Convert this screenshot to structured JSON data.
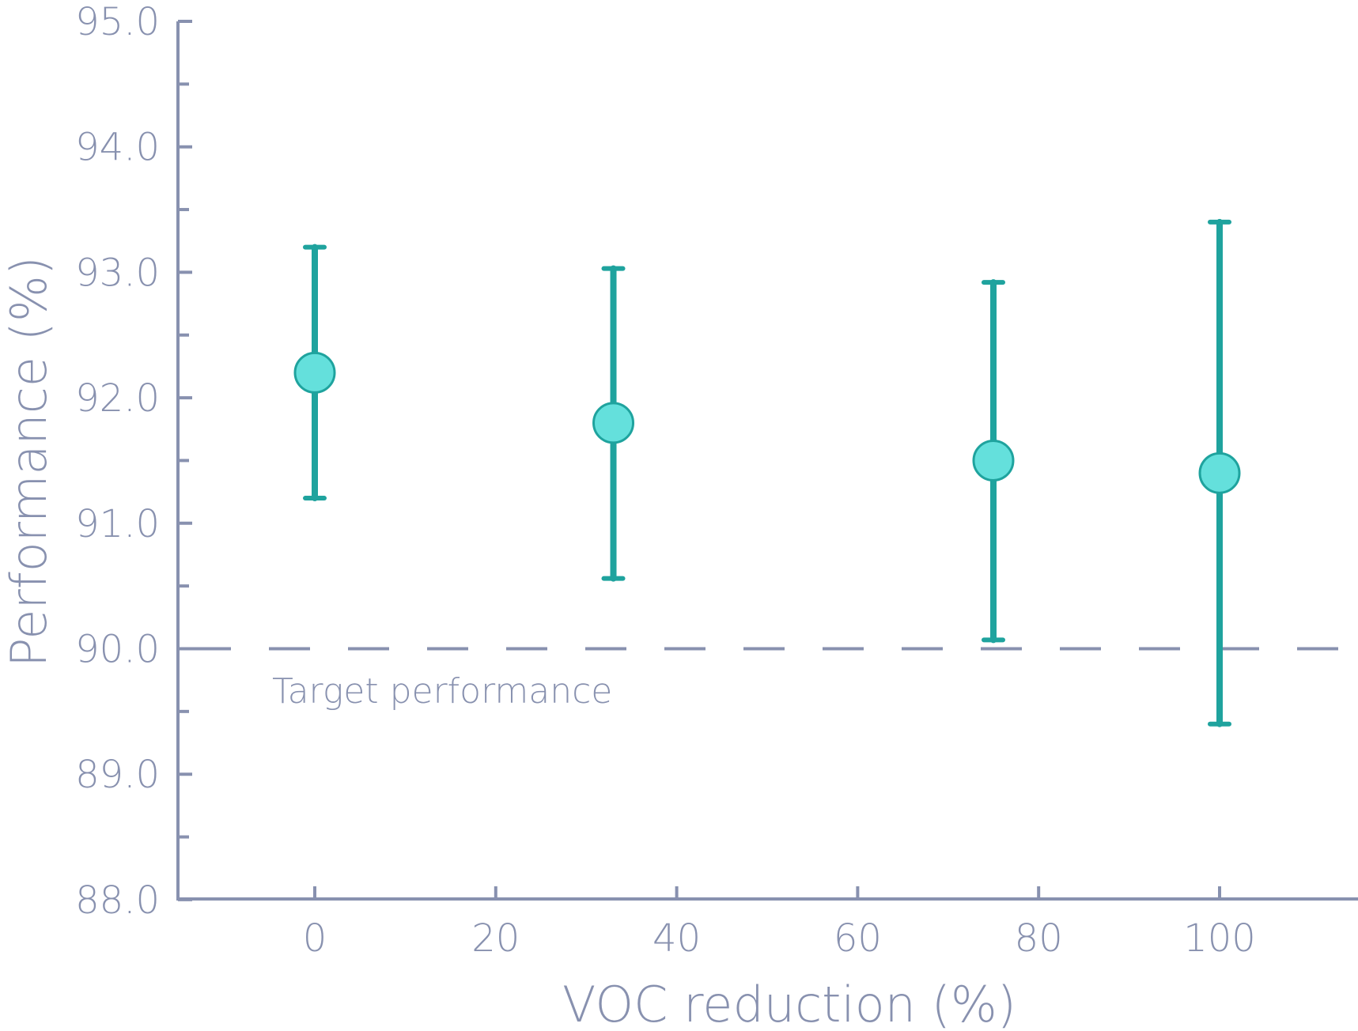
{
  "chart_data": {
    "type": "scatter",
    "title": "",
    "xlabel": "VOC reduction (%)",
    "ylabel": "Performance (%)",
    "xlim": [
      -15,
      115
    ],
    "ylim": [
      88.0,
      95.0
    ],
    "x_ticks": [
      0,
      20,
      40,
      60,
      80,
      100
    ],
    "x_tick_labels": [
      "0",
      "20",
      "40",
      "60",
      "80",
      "100"
    ],
    "y_ticks": [
      88.0,
      89.0,
      90.0,
      91.0,
      92.0,
      93.0,
      94.0,
      95.0
    ],
    "y_tick_labels": [
      "88.0",
      "89.0",
      "90.0",
      "91.0",
      "92.0",
      "93.0",
      "94.0",
      "95.0"
    ],
    "y_minor_ticks": [
      88.5,
      89.5,
      90.5,
      91.5,
      92.5,
      93.5,
      94.5
    ],
    "grid": false,
    "legend": null,
    "series": [
      {
        "name": "Performance",
        "x": [
          0,
          33,
          75,
          100
        ],
        "y": [
          92.2,
          91.8,
          91.5,
          91.4
        ],
        "error_lower": [
          91.2,
          90.56,
          90.07,
          89.4
        ],
        "error_upper": [
          93.2,
          93.03,
          92.92,
          93.4
        ],
        "marker_fill": "#64E0DC",
        "marker_edge": "#1FA39E"
      }
    ],
    "reference_lines": [
      {
        "y": 90.0,
        "style": "dashed",
        "label": "Target performance",
        "color": "#8891AF"
      }
    ],
    "colors": {
      "axis": "#8891AF",
      "errorbar": "#1FA39E",
      "marker": "#64E0DC"
    }
  }
}
